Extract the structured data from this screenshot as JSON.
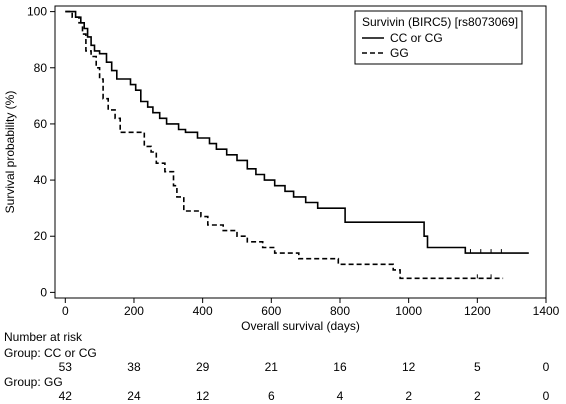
{
  "chart_data": {
    "type": "line",
    "subtype": "kaplan-meier",
    "xlabel": "Overall survival (days)",
    "ylabel": "Survival probability (%)",
    "xlim": [
      -30,
      1400
    ],
    "ylim": [
      -2,
      102
    ],
    "xticks": [
      0,
      200,
      400,
      600,
      800,
      1000,
      1200,
      1400
    ],
    "yticks": [
      0,
      20,
      40,
      60,
      80,
      100
    ],
    "legend": {
      "title": "Survivin (BIRC5) [rs8073069]",
      "placement": "top-right"
    },
    "series": [
      {
        "name": "CC or CG",
        "style": "solid",
        "color": "#000000",
        "points": [
          [
            0,
            100
          ],
          [
            15,
            100
          ],
          [
            30,
            98
          ],
          [
            45,
            96
          ],
          [
            55,
            94
          ],
          [
            65,
            91
          ],
          [
            75,
            88
          ],
          [
            85,
            86
          ],
          [
            100,
            85
          ],
          [
            120,
            82
          ],
          [
            135,
            79
          ],
          [
            150,
            76
          ],
          [
            175,
            76
          ],
          [
            190,
            74
          ],
          [
            205,
            72
          ],
          [
            220,
            68
          ],
          [
            240,
            66
          ],
          [
            255,
            64
          ],
          [
            275,
            62
          ],
          [
            295,
            60
          ],
          [
            330,
            58
          ],
          [
            350,
            57
          ],
          [
            385,
            55
          ],
          [
            420,
            53
          ],
          [
            440,
            51
          ],
          [
            470,
            49
          ],
          [
            500,
            47
          ],
          [
            530,
            44
          ],
          [
            555,
            42
          ],
          [
            580,
            40
          ],
          [
            610,
            38
          ],
          [
            640,
            36
          ],
          [
            665,
            34
          ],
          [
            700,
            32
          ],
          [
            735,
            30
          ],
          [
            815,
            25
          ],
          [
            1045,
            20
          ],
          [
            1055,
            16
          ],
          [
            1165,
            14
          ],
          [
            1350,
            14
          ]
        ],
        "censored": [
          [
            1180,
            14
          ],
          [
            1210,
            14
          ],
          [
            1240,
            14
          ],
          [
            1270,
            14
          ]
        ]
      },
      {
        "name": "GG",
        "style": "dashed",
        "color": "#000000",
        "points": [
          [
            0,
            100
          ],
          [
            20,
            98
          ],
          [
            40,
            96
          ],
          [
            50,
            92
          ],
          [
            60,
            86
          ],
          [
            75,
            84
          ],
          [
            90,
            80
          ],
          [
            100,
            76
          ],
          [
            110,
            69
          ],
          [
            125,
            65
          ],
          [
            145,
            62
          ],
          [
            160,
            57
          ],
          [
            230,
            52
          ],
          [
            250,
            50
          ],
          [
            265,
            46
          ],
          [
            290,
            43
          ],
          [
            315,
            38
          ],
          [
            325,
            34
          ],
          [
            345,
            29
          ],
          [
            395,
            27
          ],
          [
            415,
            24
          ],
          [
            460,
            22
          ],
          [
            500,
            20
          ],
          [
            530,
            18
          ],
          [
            575,
            16
          ],
          [
            610,
            14
          ],
          [
            680,
            12
          ],
          [
            795,
            10
          ],
          [
            955,
            8
          ],
          [
            975,
            5
          ],
          [
            1275,
            5
          ]
        ],
        "censored": [
          [
            1200,
            5
          ],
          [
            1240,
            5
          ]
        ]
      }
    ],
    "risk_table": {
      "title": "Number at risk",
      "time_points": [
        0,
        200,
        400,
        600,
        800,
        1000,
        1200,
        1400
      ],
      "groups": [
        {
          "label": "Group: CC or CG",
          "values": [
            "53",
            "38",
            "29",
            "21",
            "16",
            "12",
            "5",
            "0"
          ]
        },
        {
          "label": "Group: GG",
          "values": [
            "42",
            "24",
            "12",
            "6",
            "4",
            "2",
            "2",
            "0"
          ]
        }
      ]
    }
  }
}
